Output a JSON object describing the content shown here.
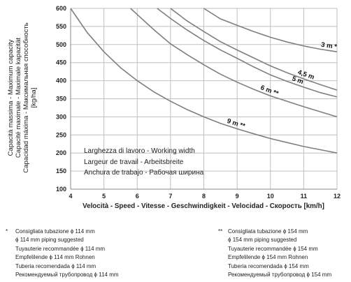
{
  "chart_data": {
    "type": "line",
    "xlabel": "Velocità - Speed - Vitesse - Geschwindigkeit - Velocidad - Скорость [km/h]",
    "ylabel_lines": [
      "Capacità massima - Maximum capacity",
      "Capacité maximale - Maximale kapazität",
      "Capacidad máxima - Максимальная способность",
      "[kg/ha]"
    ],
    "xlim": [
      4,
      12
    ],
    "ylim": [
      100,
      600
    ],
    "x_ticks": [
      4,
      5,
      6,
      7,
      8,
      9,
      10,
      11,
      12
    ],
    "y_ticks": [
      100,
      150,
      200,
      250,
      300,
      350,
      400,
      450,
      500,
      550,
      600
    ],
    "grid": true,
    "series": [
      {
        "name": "3 m *",
        "x": [
          8.0,
          8.5,
          9,
          9.5,
          10,
          10.5,
          11,
          11.5,
          12
        ],
        "y": [
          600,
          571,
          553,
          536,
          520,
          507,
          496,
          487,
          480
        ]
      },
      {
        "name": "4,5 m",
        "x": [
          7.0,
          7.5,
          8,
          8.5,
          9,
          9.5,
          10,
          10.5,
          11,
          11.5,
          12
        ],
        "y": [
          600,
          565,
          536,
          508,
          485,
          463,
          441,
          422,
          405,
          389,
          374
        ]
      },
      {
        "name": "5 m",
        "x": [
          6.6,
          7,
          7.5,
          8,
          8.5,
          9,
          9.5,
          10,
          10.5,
          11,
          11.5,
          12
        ],
        "y": [
          600,
          572,
          540,
          511,
          485,
          462,
          438,
          416,
          398,
          382,
          367,
          355
        ]
      },
      {
        "name": "6 m **",
        "x": [
          5.8,
          6,
          6.5,
          7,
          7.5,
          8,
          8.5,
          9,
          9.5,
          10,
          10.5,
          11,
          11.5,
          12
        ],
        "y": [
          600,
          583,
          541,
          502,
          472,
          444,
          418,
          396,
          376,
          358,
          343,
          328,
          314,
          300
        ]
      },
      {
        "name": "9 m **",
        "x": [
          4,
          4.5,
          5,
          5.5,
          6,
          6.5,
          7,
          7.5,
          8,
          8.5,
          9,
          9.5,
          10,
          10.5,
          11,
          11.5,
          12
        ],
        "y": [
          600,
          533,
          480,
          436,
          400,
          369,
          343,
          320,
          300,
          282,
          267,
          253,
          240,
          229,
          218,
          209,
          200
        ]
      }
    ],
    "legend_lines": [
      "Larghezza di lavoro - Working width",
      "Largeur de travail - Arbeitsbreite",
      "Anchura de trabajo - Рабочая ширина"
    ]
  },
  "notes_left": {
    "marker": "*",
    "lines": [
      "Consigliata tubazione ϕ 114 mm",
      "ϕ 114 mm piping suggested",
      "Tuyauterie recommandée ϕ 114 mm",
      "Empfelilende ϕ 114 mm Rohnen",
      "Tuberia recomendada ϕ 114 mm",
      "Рекомендуемый трубопровод ϕ 114 mm"
    ]
  },
  "notes_right": {
    "marker": "**",
    "lines": [
      "Consigliata tubazione ϕ 154 mm",
      "ϕ 154 mm piping suggested",
      "Tuyauterie recommandée ϕ 154 mm",
      "Empfelilende ϕ 154 mm Rohnen",
      "Tuberia recomendada ϕ 154 mm",
      "Рекомендуемый трубопровод ϕ 154 mm"
    ]
  },
  "colors": {
    "grid": "#bfbfbf",
    "line": "#7f7f7f",
    "axis": "#888888"
  }
}
